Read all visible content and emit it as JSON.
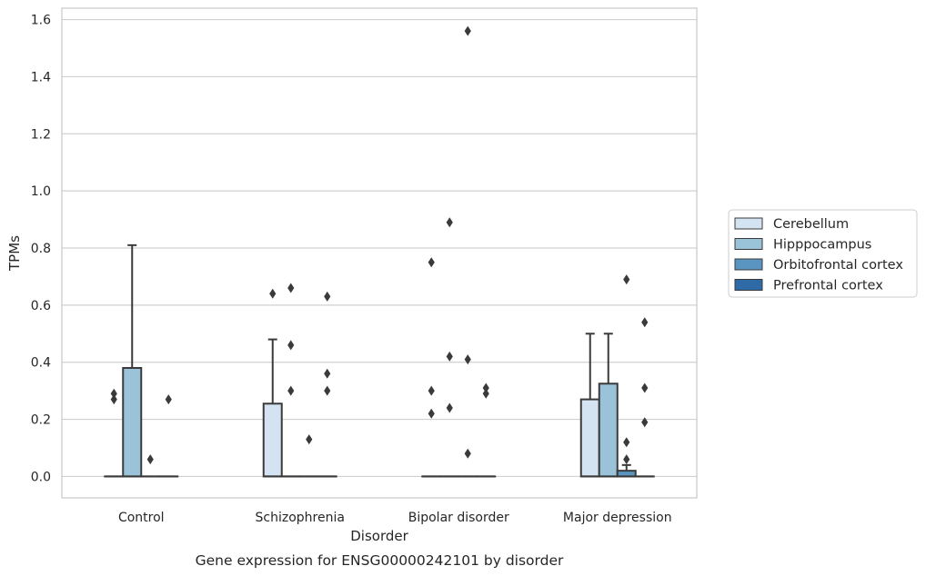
{
  "chart_data": {
    "type": "box",
    "xlabel": "Disorder",
    "ylabel": "TPMs",
    "caption": "Gene expression for ENSG00000242101 by disorder",
    "ylim": [
      -0.075,
      1.64
    ],
    "yticks": [
      0.0,
      0.2,
      0.4,
      0.6,
      0.8,
      1.0,
      1.2,
      1.4,
      1.6
    ],
    "ytick_labels": [
      "0.0",
      "0.2",
      "0.4",
      "0.6",
      "0.8",
      "1.0",
      "1.2",
      "1.4",
      "1.6"
    ],
    "grid": "horizontal",
    "legend_position": "right, outside plot",
    "categories": [
      "Control",
      "Schizophrenia",
      "Bipolar disorder",
      "Major depression"
    ],
    "series": [
      {
        "name": "Cerebellum",
        "color": "#d4e3f1",
        "boxes": [
          {
            "q1": 0,
            "median": 0,
            "q3": 0,
            "whislo": 0,
            "whishi": 0,
            "fliers": [
              0.27,
              0.29
            ]
          },
          {
            "q1": 0,
            "median": 0,
            "q3": 0.255,
            "whislo": 0,
            "whishi": 0.48,
            "fliers": [
              0.64
            ]
          },
          {
            "q1": 0,
            "median": 0,
            "q3": 0,
            "whislo": 0,
            "whishi": 0,
            "fliers": [
              0.22,
              0.3,
              0.75
            ]
          },
          {
            "q1": 0,
            "median": 0,
            "q3": 0.27,
            "whislo": 0,
            "whishi": 0.5,
            "fliers": []
          }
        ]
      },
      {
        "name": "Hipppocampus",
        "color": "#9ac3da",
        "boxes": [
          {
            "q1": 0,
            "median": 0,
            "q3": 0.38,
            "whislo": 0,
            "whishi": 0.81,
            "fliers": []
          },
          {
            "q1": 0,
            "median": 0,
            "q3": 0,
            "whislo": 0,
            "whishi": 0,
            "fliers": [
              0.3,
              0.46,
              0.66
            ]
          },
          {
            "q1": 0,
            "median": 0,
            "q3": 0,
            "whislo": 0,
            "whishi": 0,
            "fliers": [
              0.24,
              0.42,
              0.89
            ]
          },
          {
            "q1": 0,
            "median": 0,
            "q3": 0.325,
            "whislo": 0,
            "whishi": 0.5,
            "fliers": []
          }
        ]
      },
      {
        "name": "Orbitofrontal cortex",
        "color": "#5a95c1",
        "boxes": [
          {
            "q1": 0,
            "median": 0,
            "q3": 0,
            "whislo": 0,
            "whishi": 0,
            "fliers": [
              0.06
            ]
          },
          {
            "q1": 0,
            "median": 0,
            "q3": 0,
            "whislo": 0,
            "whishi": 0,
            "fliers": [
              0.13
            ]
          },
          {
            "q1": 0,
            "median": 0,
            "q3": 0,
            "whislo": 0,
            "whishi": 0,
            "fliers": [
              0.08,
              0.41,
              1.56
            ]
          },
          {
            "q1": 0,
            "median": 0,
            "q3": 0.02,
            "whislo": 0,
            "whishi": 0.04,
            "fliers": [
              0.06,
              0.12,
              0.69
            ]
          }
        ]
      },
      {
        "name": "Prefrontal cortex",
        "color": "#2e6aa6",
        "boxes": [
          {
            "q1": 0,
            "median": 0,
            "q3": 0,
            "whislo": 0,
            "whishi": 0,
            "fliers": [
              0.27
            ]
          },
          {
            "q1": 0,
            "median": 0,
            "q3": 0,
            "whislo": 0,
            "whishi": 0,
            "fliers": [
              0.3,
              0.36,
              0.63
            ]
          },
          {
            "q1": 0,
            "median": 0,
            "q3": 0,
            "whislo": 0,
            "whishi": 0,
            "fliers": [
              0.29,
              0.31
            ]
          },
          {
            "q1": 0,
            "median": 0,
            "q3": 0,
            "whislo": 0,
            "whishi": 0,
            "fliers": [
              0.19,
              0.31,
              0.54
            ]
          }
        ]
      }
    ]
  }
}
